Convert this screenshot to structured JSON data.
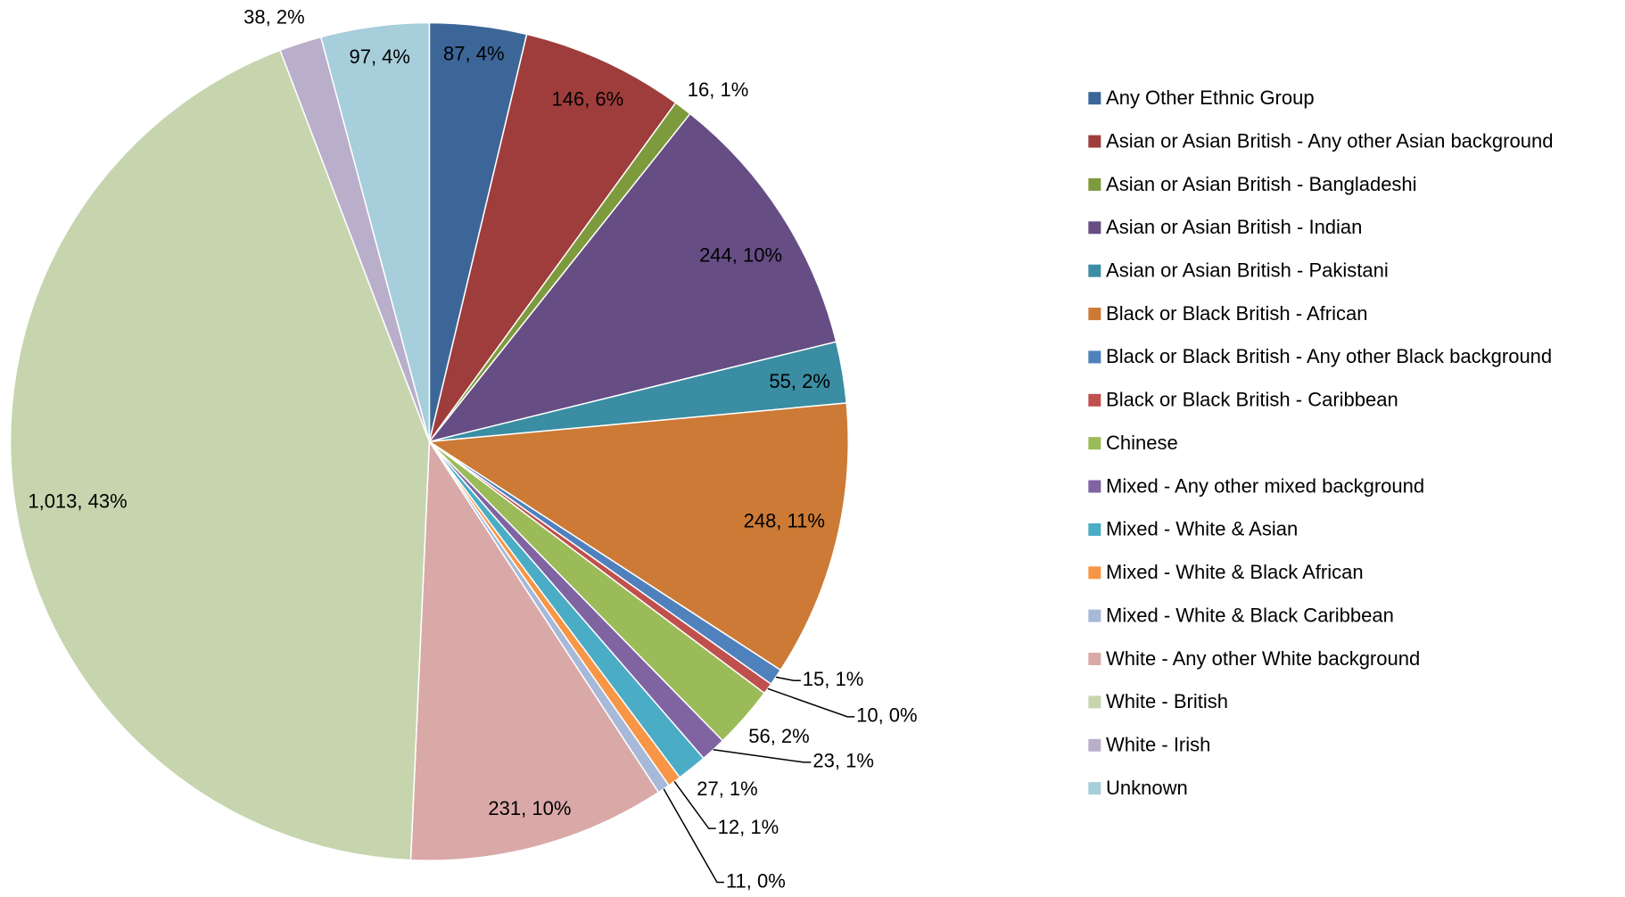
{
  "chart_data": {
    "type": "pie",
    "categories": [
      "Any Other Ethnic Group",
      "Asian or Asian British - Any other Asian background",
      "Asian or Asian British - Bangladeshi",
      "Asian or Asian British - Indian",
      "Asian or Asian British - Pakistani",
      "Black or Black British - African",
      "Black or Black British - Any other Black background",
      "Black or Black British - Caribbean",
      "Chinese",
      "Mixed - Any other mixed background",
      "Mixed - White & Asian",
      "Mixed - White & Black African",
      "Mixed - White & Black Caribbean",
      "White - Any other White background",
      "White - British",
      "White - Irish",
      "Unknown"
    ],
    "values": [
      87,
      146,
      16,
      244,
      55,
      248,
      15,
      10,
      56,
      23,
      27,
      12,
      11,
      231,
      1013,
      38,
      97
    ],
    "value_labels": [
      "87, 4%",
      "146, 6%",
      "16, 1%",
      "244, 10%",
      "55, 2%",
      "248, 11%",
      "15, 1%",
      "10, 0%",
      "56, 2%",
      "23, 1%",
      "27, 1%",
      "12, 1%",
      "11, 0%",
      "231, 10%",
      "1,013, 43%",
      "38, 2%",
      "97, 4%"
    ],
    "colors": [
      "#3d6698",
      "#9e3d3b",
      "#7d9a3c",
      "#664d84",
      "#3a8da2",
      "#cc7a36",
      "#4f81bd",
      "#c0504d",
      "#9bbb59",
      "#8064a2",
      "#4bacc6",
      "#f79646",
      "#a7b9d9",
      "#d9a9a8",
      "#c6d5ae",
      "#b9afcb",
      "#a7cedb"
    ],
    "legend": "right"
  }
}
